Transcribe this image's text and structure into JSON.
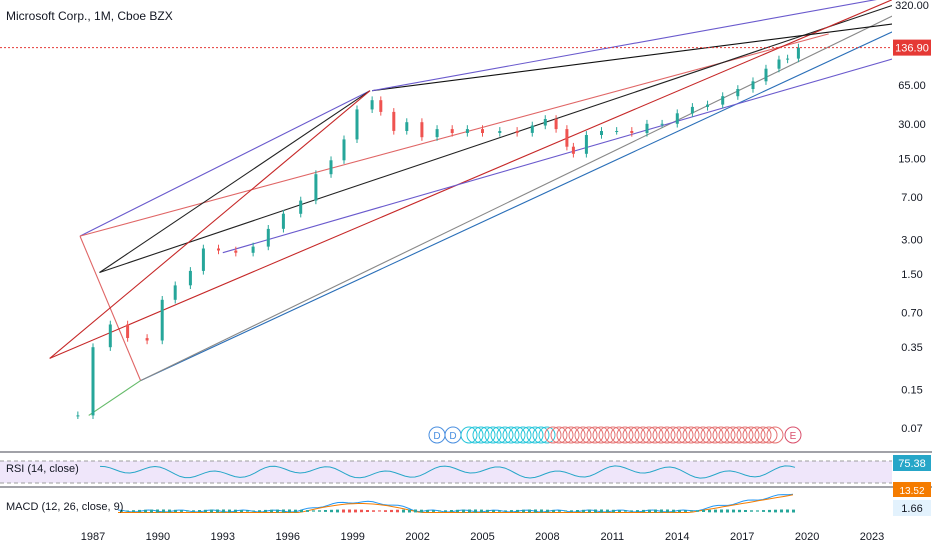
{
  "header": {
    "title": "Microsoft Corp., 1M, Cboe BZX"
  },
  "price_axis": {
    "ticks": [
      "320.00",
      "65.00",
      "30.00",
      "15.00",
      "7.00",
      "3.00",
      "1.50",
      "0.70",
      "0.35",
      "0.15",
      "0.07"
    ],
    "last_price": "136.90",
    "last_price_color": "#e53935"
  },
  "time_axis": {
    "ticks": [
      "1987",
      "1990",
      "1993",
      "1996",
      "1999",
      "2002",
      "2005",
      "2008",
      "2011",
      "2014",
      "2017",
      "2020",
      "2023"
    ]
  },
  "markers": {
    "d1": "D",
    "d2": "D",
    "e": "E"
  },
  "rsi": {
    "title": "RSI (14, close)",
    "value": "75.38",
    "color": "#26a6c8"
  },
  "macd": {
    "title": "MACD (12, 26, close, 9)",
    "value1": "13.52",
    "value2": "1.66",
    "color1": "#f57c00",
    "color2": "#2196f3"
  },
  "chart_data": {
    "type": "candlestick",
    "symbol": "Microsoft Corp.",
    "interval": "1M",
    "exchange": "Cboe BZX",
    "y_scale": "log",
    "ylim": [
      0.05,
      380
    ],
    "xlim": [
      1985.0,
      2024.0
    ],
    "series": [
      {
        "x": [
          1986.3,
          1987.0,
          1987.8,
          1988.6,
          1989.5,
          1990.2,
          1990.8,
          1991.5,
          1992.1,
          1992.8,
          1993.6,
          1994.4,
          1995.1,
          1995.8,
          1996.6,
          1997.3,
          1998.0,
          1998.6,
          1999.2,
          1999.9,
          2000.3,
          2000.9,
          2001.5,
          2002.2,
          2002.9,
          2003.6,
          2004.3,
          2005.0,
          2005.8,
          2006.6,
          2007.3,
          2007.9,
          2008.4,
          2008.9,
          2009.2,
          2009.8,
          2010.5,
          2011.2,
          2011.9,
          2012.6,
          2013.3,
          2014.0,
          2014.7,
          2015.4,
          2016.1,
          2016.8,
          2017.5,
          2018.1,
          2018.7,
          2019.1,
          2019.6
        ],
        "y": [
          0.09,
          0.35,
          0.55,
          0.42,
          0.4,
          0.9,
          1.2,
          1.6,
          2.5,
          2.4,
          2.3,
          2.6,
          3.7,
          5.0,
          6.5,
          11.0,
          14.5,
          22.0,
          40.0,
          48.0,
          38.0,
          26.0,
          31.0,
          23.0,
          27.0,
          25.0,
          27.0,
          25.0,
          26.0,
          25.0,
          29.0,
          33.0,
          27.0,
          19.0,
          16.5,
          24.0,
          26.0,
          26.0,
          25.0,
          30.0,
          30.0,
          37.0,
          42.0,
          44.0,
          52.0,
          60.0,
          70.0,
          90.0,
          108.0,
          110.0,
          137.0
        ]
      }
    ]
  }
}
